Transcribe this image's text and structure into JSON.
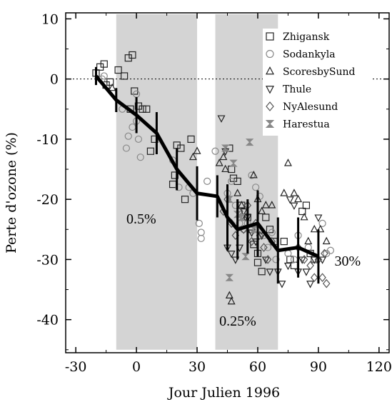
{
  "chart_data": {
    "type": "scatter",
    "xlabel": "Jour Julien 1996",
    "ylabel": "Perte d'ozone (%)",
    "xlim": [
      -35,
      125
    ],
    "ylim": [
      -45.5,
      11
    ],
    "xticks": [
      -30,
      0,
      30,
      60,
      90,
      120
    ],
    "yticks": [
      10,
      0,
      -10,
      -20,
      -30,
      -40
    ],
    "shaded_regions": [
      [
        -10,
        30
      ],
      [
        39,
        70
      ]
    ],
    "zero_reference_line": true,
    "annotations": [
      {
        "text": "0.5%",
        "x": -5,
        "y": -24
      },
      {
        "text": "0.25%",
        "x": 41,
        "y": -41
      },
      {
        "text": "30%",
        "x": 98,
        "y": -31
      }
    ],
    "legend": {
      "position": "top-right",
      "entries": [
        {
          "name": "Zhigansk",
          "marker": "square"
        },
        {
          "name": "Sodankyla",
          "marker": "circle"
        },
        {
          "name": "ScoresbySund",
          "marker": "triangle-up"
        },
        {
          "name": "Thule",
          "marker": "triangle-down"
        },
        {
          "name": "NyAlesund",
          "marker": "diamond"
        },
        {
          "name": "Harestua",
          "marker": "hourglass"
        }
      ]
    },
    "series": [
      {
        "name": "Zhigansk",
        "marker": "square",
        "points": [
          [
            -20,
            1
          ],
          [
            -18,
            2
          ],
          [
            -16,
            2.5
          ],
          [
            -15,
            -1
          ],
          [
            -13,
            -0.5
          ],
          [
            -9,
            1.5
          ],
          [
            -6,
            0.5
          ],
          [
            -4,
            3.5
          ],
          [
            -2,
            4
          ],
          [
            -1,
            -2
          ],
          [
            1,
            -4.5
          ],
          [
            3,
            -5
          ],
          [
            5,
            -5
          ],
          [
            7,
            -12
          ],
          [
            9,
            -10
          ],
          [
            -3,
            -5
          ],
          [
            20,
            -11
          ],
          [
            22,
            -11.5
          ],
          [
            27,
            -10
          ],
          [
            19,
            -16
          ],
          [
            18,
            -17.5
          ],
          [
            24,
            -20
          ],
          [
            46,
            -11.5
          ],
          [
            47,
            -15
          ],
          [
            48,
            -16.5
          ],
          [
            50,
            -17
          ],
          [
            52,
            -21
          ],
          [
            55,
            -23
          ],
          [
            57,
            -25
          ],
          [
            58,
            -27.5
          ],
          [
            60,
            -29
          ],
          [
            60,
            -30.5
          ],
          [
            62,
            -32
          ],
          [
            64,
            -23
          ],
          [
            66,
            -25
          ],
          [
            68,
            -27
          ],
          [
            73,
            -27
          ],
          [
            76,
            -30
          ],
          [
            78,
            -31
          ],
          [
            82,
            -22
          ],
          [
            84,
            -21
          ],
          [
            86,
            -29
          ],
          [
            88,
            -30
          ]
        ]
      },
      {
        "name": "Sodankyla",
        "marker": "circle",
        "points": [
          [
            -17,
            0
          ],
          [
            -16,
            0.5
          ],
          [
            -7,
            -5
          ],
          [
            -5,
            -11.5
          ],
          [
            -4,
            -9.5
          ],
          [
            -2,
            -8
          ],
          [
            0,
            -7
          ],
          [
            1,
            -10
          ],
          [
            2,
            -13
          ],
          [
            0,
            -2.5
          ],
          [
            18,
            -13.5
          ],
          [
            21,
            -18
          ],
          [
            26,
            -18
          ],
          [
            28,
            -19
          ],
          [
            31,
            -24
          ],
          [
            32,
            -25.5
          ],
          [
            32,
            -26.5
          ],
          [
            35,
            -17
          ],
          [
            39,
            -12
          ],
          [
            45,
            -19
          ],
          [
            47,
            -17
          ],
          [
            49,
            -21
          ],
          [
            51,
            -24
          ],
          [
            53,
            -25
          ],
          [
            55,
            -24
          ],
          [
            57,
            -16
          ],
          [
            59,
            -18
          ],
          [
            61,
            -19.5
          ],
          [
            63,
            -26
          ],
          [
            65,
            -28
          ],
          [
            67,
            -25.5
          ],
          [
            69,
            -30
          ],
          [
            75,
            -29
          ],
          [
            78,
            -30
          ],
          [
            80,
            -26
          ],
          [
            85,
            -28
          ],
          [
            88,
            -30
          ],
          [
            92,
            -24
          ],
          [
            94,
            -29
          ],
          [
            96,
            -28.5
          ]
        ]
      },
      {
        "name": "ScoresbySund",
        "marker": "triangle-up",
        "points": [
          [
            -12,
            -1.5
          ],
          [
            28,
            -13
          ],
          [
            30,
            -12
          ],
          [
            41,
            -14
          ],
          [
            43,
            -13
          ],
          [
            44,
            -15
          ],
          [
            46,
            -36
          ],
          [
            47,
            -37
          ],
          [
            50,
            -19
          ],
          [
            52,
            -21
          ],
          [
            54,
            -23
          ],
          [
            58,
            -16
          ],
          [
            60,
            -20
          ],
          [
            62,
            -22
          ],
          [
            64,
            -21
          ],
          [
            67,
            -21
          ],
          [
            73,
            -19
          ],
          [
            75,
            -14
          ],
          [
            78,
            -19
          ],
          [
            80,
            -20
          ],
          [
            83,
            -23
          ],
          [
            85,
            -27
          ],
          [
            88,
            -25
          ],
          [
            91,
            -25
          ],
          [
            94,
            -27
          ]
        ]
      },
      {
        "name": "Thule",
        "marker": "triangle-down",
        "points": [
          [
            42,
            -6.5
          ],
          [
            44,
            -12
          ],
          [
            45,
            -28
          ],
          [
            47,
            -29
          ],
          [
            49,
            -30
          ],
          [
            51,
            -28
          ],
          [
            53,
            -22
          ],
          [
            55,
            -23
          ],
          [
            57,
            -25.5
          ],
          [
            59,
            -27
          ],
          [
            62,
            -26
          ],
          [
            64,
            -30
          ],
          [
            66,
            -32
          ],
          [
            70,
            -32
          ],
          [
            72,
            -34
          ],
          [
            75,
            -31
          ],
          [
            76,
            -20
          ],
          [
            78,
            -21
          ],
          [
            80,
            -32
          ],
          [
            82,
            -30
          ],
          [
            84,
            -32
          ],
          [
            86,
            -34
          ],
          [
            88,
            -30
          ],
          [
            90,
            -23
          ],
          [
            92,
            -30
          ]
        ]
      },
      {
        "name": "NyAlesund",
        "marker": "diamond",
        "points": [
          [
            43,
            -22
          ],
          [
            45,
            -20
          ],
          [
            47,
            -24
          ],
          [
            49,
            -26
          ],
          [
            51,
            -22
          ],
          [
            53,
            -25
          ],
          [
            55,
            -21
          ],
          [
            57,
            -27
          ],
          [
            59,
            -24
          ],
          [
            61,
            -26
          ],
          [
            63,
            -28
          ],
          [
            65,
            -30
          ],
          [
            67,
            -27
          ],
          [
            80,
            -28
          ],
          [
            83,
            -30
          ],
          [
            86,
            -31
          ],
          [
            88,
            -33
          ],
          [
            90,
            -30
          ],
          [
            92,
            -33
          ],
          [
            93,
            -29
          ],
          [
            94,
            -34
          ]
        ]
      },
      {
        "name": "Harestua",
        "marker": "hourglass",
        "points": [
          [
            44,
            -11.5
          ],
          [
            46,
            -20
          ],
          [
            48,
            -14
          ],
          [
            50,
            -22.5
          ],
          [
            52,
            -23
          ],
          [
            54,
            -29.5
          ],
          [
            46,
            -33
          ],
          [
            56,
            -10.5
          ],
          [
            58,
            -25
          ]
        ]
      }
    ],
    "mean_curve": {
      "x": [
        -20,
        -10,
        0,
        10,
        20,
        30,
        40,
        45,
        50,
        55,
        60,
        70,
        80,
        90
      ],
      "y": [
        0.5,
        -3.5,
        -6,
        -9,
        -15,
        -19,
        -19.5,
        -23,
        -25,
        -24.5,
        -24,
        -28.5,
        -28,
        -29.5
      ],
      "error": [
        1.5,
        2,
        3,
        3.5,
        3.5,
        4.5,
        3.5,
        5.5,
        5,
        4.5,
        5.5,
        5.5,
        5,
        4.5
      ]
    }
  }
}
